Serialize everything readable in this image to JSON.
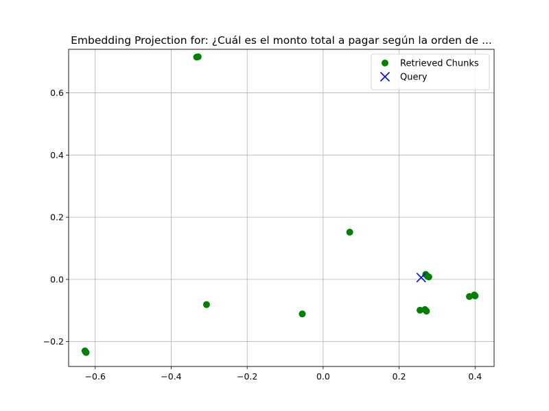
{
  "chart_data": {
    "type": "scatter",
    "title": "Embedding Projection for: ¿Cuál es el monto total a pagar según la orden de ...",
    "xlabel": "",
    "ylabel": "",
    "xlim": [
      -0.67,
      0.45
    ],
    "ylim": [
      -0.28,
      0.74
    ],
    "xticks": [
      -0.6,
      -0.4,
      -0.2,
      0.0,
      0.2,
      0.4
    ],
    "xtick_labels": [
      "−0.6",
      "−0.4",
      "−0.2",
      "0.0",
      "0.2",
      "0.4"
    ],
    "yticks": [
      -0.2,
      0.0,
      0.2,
      0.4,
      0.6
    ],
    "ytick_labels": [
      "−0.2",
      "0.0",
      "0.2",
      "0.4",
      "0.6"
    ],
    "grid": true,
    "legend": "top-right",
    "series": [
      {
        "name": "Retrieved Chunks",
        "marker": "circle",
        "color": "#008000",
        "points": [
          {
            "x": -0.333,
            "y": 0.715
          },
          {
            "x": -0.329,
            "y": 0.716
          },
          {
            "x": 0.07,
            "y": 0.152
          },
          {
            "x": 0.27,
            "y": 0.016
          },
          {
            "x": 0.275,
            "y": 0.01
          },
          {
            "x": 0.278,
            "y": 0.008
          },
          {
            "x": 0.385,
            "y": -0.055
          },
          {
            "x": 0.398,
            "y": -0.05
          },
          {
            "x": 0.4,
            "y": -0.053
          },
          {
            "x": -0.307,
            "y": -0.081
          },
          {
            "x": -0.055,
            "y": -0.111
          },
          {
            "x": 0.255,
            "y": -0.099
          },
          {
            "x": 0.268,
            "y": -0.097
          },
          {
            "x": 0.272,
            "y": -0.102
          },
          {
            "x": -0.627,
            "y": -0.23
          },
          {
            "x": -0.624,
            "y": -0.235
          }
        ]
      },
      {
        "name": "Query",
        "marker": "x",
        "color": "#0000ff",
        "points": [
          {
            "x": 0.258,
            "y": 0.006
          }
        ]
      }
    ]
  }
}
